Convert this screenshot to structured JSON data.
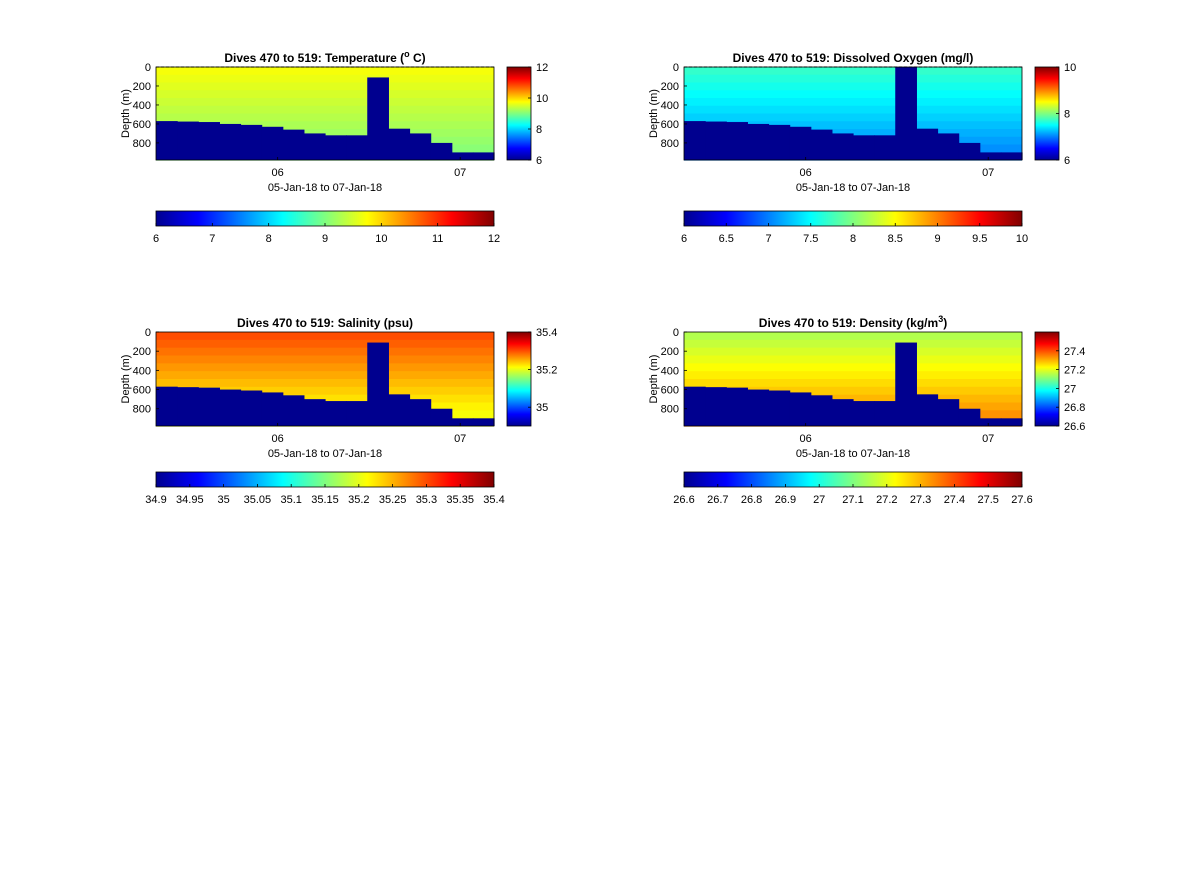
{
  "chart_data": [
    {
      "type": "heatmap",
      "title": "Dives 470 to 519: Temperature (",
      "title_sup": "o",
      "title_tail": " C)",
      "xlabel": "05-Jan-18 to 07-Jan-18",
      "ylabel": "Depth (m)",
      "x_ticks": [
        "06",
        "07"
      ],
      "x_range": [
        "05-Jan-18",
        "07-Jan-18"
      ],
      "y_ticks": [
        "0",
        "200",
        "400",
        "600",
        "800"
      ],
      "ylim": [
        0,
        980
      ],
      "clim": [
        6,
        12
      ],
      "colorbar_ticks": [
        "6",
        "8",
        "10",
        "12"
      ],
      "hcolorbar_ticks": [
        "6",
        "7",
        "8",
        "9",
        "10",
        "11",
        "12"
      ],
      "top_value": 9.7,
      "bottom_value": 9.0,
      "water_color": "#ffd000",
      "bathymetry_depth_m": [
        570,
        575,
        580,
        600,
        610,
        630,
        660,
        700,
        720,
        720,
        110,
        650,
        700,
        800,
        900,
        900
      ],
      "gap_note": "",
      "surface_line": "dashed"
    },
    {
      "type": "heatmap",
      "title": "Dives 470 to 519: Dissolved Oxygen (mg/l)",
      "title_sup": "",
      "title_tail": "",
      "xlabel": "05-Jan-18 to 07-Jan-18",
      "ylabel": "Depth (m)",
      "x_ticks": [
        "06",
        "07"
      ],
      "x_range": [
        "05-Jan-18",
        "07-Jan-18"
      ],
      "y_ticks": [
        "0",
        "200",
        "400",
        "600",
        "800"
      ],
      "ylim": [
        0,
        980
      ],
      "clim": [
        6,
        10
      ],
      "colorbar_ticks": [
        "6",
        "8",
        "10"
      ],
      "hcolorbar_ticks": [
        "6",
        "6.5",
        "7",
        "7.5",
        "8",
        "8.5",
        "9",
        "9.5",
        "10"
      ],
      "top_value": 7.7,
      "bottom_value": 7.0,
      "water_color": "#33ddff",
      "bathymetry_depth_m": [
        570,
        575,
        580,
        600,
        610,
        630,
        660,
        700,
        720,
        720,
        0,
        650,
        700,
        800,
        900,
        900
      ],
      "surface_line": "dashed"
    },
    {
      "type": "heatmap",
      "title": "Dives 470 to 519: Salinity (psu)",
      "title_sup": "",
      "title_tail": "",
      "xlabel": "05-Jan-18 to 07-Jan-18",
      "ylabel": "Depth (m)",
      "x_ticks": [
        "06",
        "07"
      ],
      "x_range": [
        "05-Jan-18",
        "07-Jan-18"
      ],
      "y_ticks": [
        "0",
        "200",
        "400",
        "600",
        "800"
      ],
      "ylim": [
        0,
        980
      ],
      "clim": [
        34.9,
        35.4
      ],
      "colorbar_ticks": [
        "35",
        "35.2",
        "35.4"
      ],
      "hcolorbar_ticks": [
        "34.9",
        "34.95",
        "35",
        "35.05",
        "35.1",
        "35.15",
        "35.2",
        "35.25",
        "35.3",
        "35.35",
        "35.4"
      ],
      "top_value": 35.3,
      "bottom_value": 35.2,
      "water_color": "#ff9900",
      "bathymetry_depth_m": [
        570,
        575,
        580,
        600,
        610,
        630,
        660,
        700,
        720,
        720,
        110,
        650,
        700,
        800,
        900,
        900
      ],
      "surface_line": "none"
    },
    {
      "type": "heatmap",
      "title": "Dives 470 to 519: Density (kg/m",
      "title_sup": "3",
      "title_tail": ")",
      "xlabel": "05-Jan-18 to 07-Jan-18",
      "ylabel": "Depth (m)",
      "x_ticks": [
        "06",
        "07"
      ],
      "x_range": [
        "05-Jan-18",
        "07-Jan-18"
      ],
      "y_ticks": [
        "0",
        "200",
        "400",
        "600",
        "800"
      ],
      "ylim": [
        0,
        980
      ],
      "clim": [
        26.6,
        27.6
      ],
      "colorbar_ticks": [
        "26.6",
        "26.8",
        "27",
        "27.2",
        "27.4"
      ],
      "hcolorbar_ticks": [
        "26.6",
        "26.7",
        "26.8",
        "26.9",
        "27",
        "27.1",
        "27.2",
        "27.3",
        "27.4",
        "27.5",
        "27.6"
      ],
      "top_value": 27.15,
      "bottom_value": 27.35,
      "water_color": "#ffcc00",
      "bathymetry_depth_m": [
        570,
        575,
        580,
        600,
        610,
        630,
        660,
        700,
        720,
        720,
        110,
        650,
        700,
        800,
        900,
        900
      ],
      "surface_line": "none"
    }
  ]
}
